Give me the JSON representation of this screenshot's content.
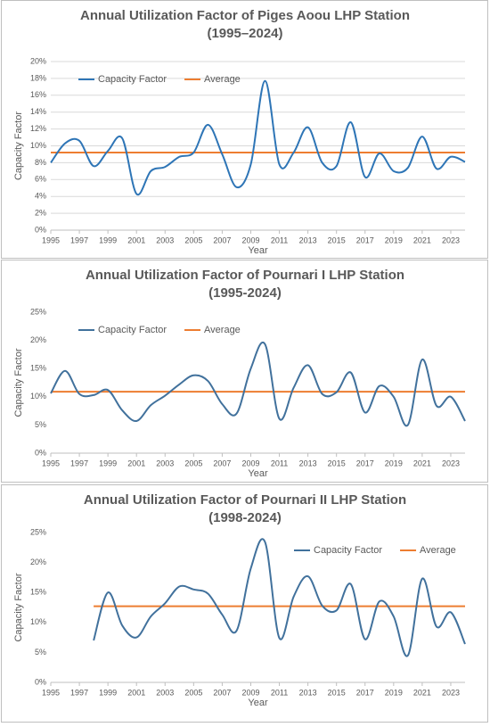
{
  "chart_data": [
    {
      "type": "line",
      "title": "Annual Utilization Factor of Piges Aoou LHP Station",
      "subtitle": "(1995–2024)",
      "x_label": "Year",
      "y_label": "Capacity Factor",
      "x": [
        1995,
        1996,
        1997,
        1998,
        1999,
        2000,
        2001,
        2002,
        2003,
        2004,
        2005,
        2006,
        2007,
        2008,
        2009,
        2010,
        2011,
        2012,
        2013,
        2014,
        2015,
        2016,
        2017,
        2018,
        2019,
        2020,
        2021,
        2022,
        2023,
        2024
      ],
      "xlim": [
        1995,
        2024
      ],
      "xticks": [
        1995,
        1997,
        1999,
        2001,
        2003,
        2005,
        2007,
        2009,
        2011,
        2013,
        2015,
        2017,
        2019,
        2021,
        2023
      ],
      "ylim": [
        0,
        20
      ],
      "yticks": [
        {
          "value": 0,
          "label": "0%"
        },
        {
          "value": 2,
          "label": "2%"
        },
        {
          "value": 4,
          "label": "4%"
        },
        {
          "value": 6,
          "label": "6%"
        },
        {
          "value": 8,
          "label": "8%"
        },
        {
          "value": 10,
          "label": "10%"
        },
        {
          "value": 12,
          "label": "12%"
        },
        {
          "value": 14,
          "label": "14%"
        },
        {
          "value": 16,
          "label": "16%"
        },
        {
          "value": 18,
          "label": "18%"
        },
        {
          "value": 20,
          "label": "20%"
        }
      ],
      "grid": true,
      "legend": "upper left",
      "series": [
        {
          "name": "Capacity Factor",
          "color": "#2e75b6",
          "values": [
            8.0,
            10.3,
            10.6,
            7.6,
            9.4,
            10.9,
            4.3,
            7.0,
            7.5,
            8.7,
            9.2,
            12.5,
            9.0,
            5.1,
            7.8,
            17.7,
            7.8,
            9.2,
            12.2,
            8.0,
            7.6,
            12.8,
            6.3,
            9.1,
            7.0,
            7.4,
            11.1,
            7.3,
            8.7,
            8.1
          ]
        }
      ],
      "average": {
        "name": "Average",
        "color": "#ed7d31",
        "value": 9.2
      }
    },
    {
      "type": "line",
      "title": "Annual Utilization Factor of Pournari I LHP Station",
      "subtitle": "(1995-2024)",
      "x_label": "Year",
      "y_label": "Capacity Factor",
      "x": [
        1995,
        1996,
        1997,
        1998,
        1999,
        2000,
        2001,
        2002,
        2003,
        2004,
        2005,
        2006,
        2007,
        2008,
        2009,
        2010,
        2011,
        2012,
        2013,
        2014,
        2015,
        2016,
        2017,
        2018,
        2019,
        2020,
        2021,
        2022,
        2023,
        2024
      ],
      "xlim": [
        1995,
        2024
      ],
      "xticks": [
        1995,
        1997,
        1999,
        2001,
        2003,
        2005,
        2007,
        2009,
        2011,
        2013,
        2015,
        2017,
        2019,
        2021,
        2023
      ],
      "ylim": [
        0,
        25
      ],
      "yticks": [
        {
          "value": 0,
          "label": "0%"
        },
        {
          "value": 5,
          "label": "5%"
        },
        {
          "value": 10,
          "label": "10%"
        },
        {
          "value": 15,
          "label": "15%"
        },
        {
          "value": 20,
          "label": "20%"
        },
        {
          "value": 25,
          "label": "25%"
        }
      ],
      "grid": false,
      "legend": "upper left",
      "series": [
        {
          "name": "Capacity Factor",
          "color": "#41719c",
          "values": [
            10.6,
            14.6,
            10.5,
            10.3,
            11.2,
            7.6,
            5.7,
            8.5,
            10.2,
            12.2,
            13.8,
            12.8,
            8.7,
            7.0,
            15.0,
            19.3,
            6.1,
            11.6,
            15.6,
            10.5,
            10.8,
            14.3,
            7.2,
            11.9,
            10.0,
            5.0,
            16.6,
            8.4,
            10.0,
            5.7
          ]
        }
      ],
      "average": {
        "name": "Average",
        "color": "#ed7d31",
        "value": 10.9
      }
    },
    {
      "type": "line",
      "title": "Annual Utilization Factor of Pournari II LHP Station",
      "subtitle": "(1998-2024)",
      "x_label": "Year",
      "y_label": "Capacity Factor",
      "x": [
        1998,
        1999,
        2000,
        2001,
        2002,
        2003,
        2004,
        2005,
        2006,
        2007,
        2008,
        2009,
        2010,
        2011,
        2012,
        2013,
        2014,
        2015,
        2016,
        2017,
        2018,
        2019,
        2020,
        2021,
        2022,
        2023,
        2024
      ],
      "xlim": [
        1995,
        2024
      ],
      "xticks": [
        1995,
        1997,
        1999,
        2001,
        2003,
        2005,
        2007,
        2009,
        2011,
        2013,
        2015,
        2017,
        2019,
        2021,
        2023
      ],
      "ylim": [
        0,
        25
      ],
      "yticks": [
        {
          "value": 0,
          "label": "0%"
        },
        {
          "value": 5,
          "label": "5%"
        },
        {
          "value": 10,
          "label": "10%"
        },
        {
          "value": 15,
          "label": "15%"
        },
        {
          "value": 20,
          "label": "20%"
        },
        {
          "value": 25,
          "label": "25%"
        }
      ],
      "grid": false,
      "legend": "upper right",
      "series": [
        {
          "name": "Capacity Factor",
          "color": "#41719c",
          "values": [
            7.0,
            15.0,
            9.5,
            7.5,
            11.0,
            13.2,
            16.0,
            15.5,
            14.8,
            11.3,
            8.6,
            19.0,
            23.4,
            7.4,
            14.3,
            17.7,
            12.8,
            12.0,
            16.4,
            7.2,
            13.5,
            11.0,
            4.5,
            17.3,
            9.3,
            11.7,
            6.4
          ]
        }
      ],
      "average": {
        "name": "Average",
        "color": "#ed7d31",
        "value": 12.7
      }
    }
  ]
}
